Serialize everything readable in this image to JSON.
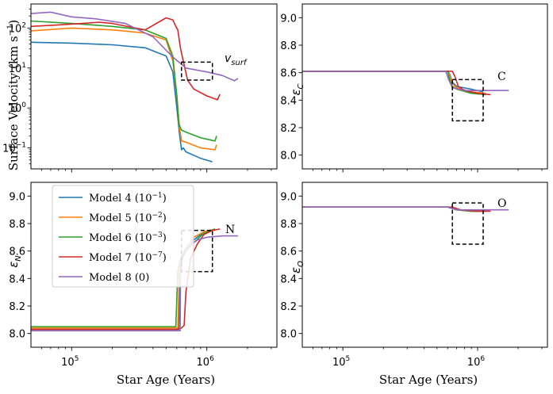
{
  "figure": {
    "xlabel": "Star Age (Years)",
    "xticks": [
      "10",
      "10"
    ],
    "xtick_exponents": [
      "5",
      "6"
    ],
    "x_range": [
      50000,
      3300000
    ]
  },
  "legend": [
    {
      "label": "Model 4 (10",
      "exp": "−1",
      "close": ")",
      "color": "#1f77b4"
    },
    {
      "label": "Model 5 (10",
      "exp": "−2",
      "close": ")",
      "color": "#ff7f0e"
    },
    {
      "label": "Model 6 (10",
      "exp": "−3",
      "close": ")",
      "color": "#2ca02c"
    },
    {
      "label": "Model 7 (10",
      "exp": "−7",
      "close": ")",
      "color": "#d62728"
    },
    {
      "label": "Model 8 (0)",
      "exp": "",
      "close": "",
      "color": "#9467bd"
    }
  ],
  "panels": {
    "velocity": {
      "ylabel_main": "Surface Velocity (km s",
      "ylabel_exp": "−1",
      "ylabel_close": ")",
      "yticks": [
        {
          "base": "10",
          "exp": "2",
          "value": 100
        },
        {
          "base": "10",
          "exp": "1",
          "value": 10
        },
        {
          "base": "10",
          "exp": "0",
          "value": 1
        },
        {
          "base": "10",
          "exp": "−1",
          "value": 0.1
        }
      ],
      "annotation": "v",
      "annotation_sub": "surf"
    },
    "carbon": {
      "ylabel": "ε",
      "ylabel_sub": "C",
      "yticks": [
        "9.0",
        "8.8",
        "8.6",
        "8.4",
        "8.2",
        "8.0"
      ],
      "annotation": "C"
    },
    "nitrogen": {
      "ylabel": "ε",
      "ylabel_sub": "N",
      "yticks": [
        "9.0",
        "8.8",
        "8.6",
        "8.4",
        "8.2",
        "8.0"
      ],
      "annotation": "N"
    },
    "oxygen": {
      "ylabel": "ε",
      "ylabel_sub": "O",
      "yticks": [
        "9.0",
        "8.8",
        "8.6",
        "8.4",
        "8.2",
        "8.0"
      ],
      "annotation": "O"
    }
  },
  "chart_data": [
    {
      "type": "line",
      "title": "",
      "xlabel": "",
      "ylabel": "Surface Velocity (km s−1)",
      "xscale": "log",
      "yscale": "log",
      "xlim": [
        50000,
        3300000
      ],
      "ylim": [
        0.03,
        400
      ],
      "highlight_box": {
        "x": [
          650000,
          1100000
        ],
        "y": [
          5,
          14
        ]
      },
      "series": [
        {
          "name": "Model 4 (10−1)",
          "x": [
            50000,
            100000,
            200000,
            350000,
            500000,
            560000,
            600000,
            630000,
            650000,
            670000,
            700000,
            900000,
            1100000
          ],
          "y": [
            44,
            42,
            38,
            32,
            20,
            8,
            1,
            0.2,
            0.09,
            0.1,
            0.08,
            0.055,
            0.045
          ]
        },
        {
          "name": "Model 5 (10−2)",
          "x": [
            50000,
            100000,
            200000,
            350000,
            500000,
            560000,
            600000,
            630000,
            650000,
            700000,
            900000,
            1150000,
            1180000
          ],
          "y": [
            85,
            100,
            90,
            75,
            50,
            15,
            2,
            0.3,
            0.15,
            0.14,
            0.1,
            0.09,
            0.12
          ]
        },
        {
          "name": "Model 6 (10−3)",
          "x": [
            50000,
            100000,
            200000,
            350000,
            500000,
            560000,
            600000,
            620000,
            650000,
            700000,
            900000,
            1150000,
            1180000
          ],
          "y": [
            150,
            130,
            110,
            90,
            55,
            20,
            2,
            0.4,
            0.28,
            0.25,
            0.18,
            0.15,
            0.2
          ]
        },
        {
          "name": "Model 7 (10−7)",
          "x": [
            50000,
            80000,
            120000,
            160000,
            200000,
            350000,
            500000,
            560000,
            590000,
            610000,
            640000,
            680000,
            720000,
            800000,
            1000000,
            1200000,
            1250000
          ],
          "y": [
            110,
            120,
            130,
            140,
            130,
            90,
            180,
            160,
            110,
            90,
            30,
            12,
            5,
            3,
            2,
            1.6,
            2.2
          ]
        },
        {
          "name": "Model 8 (0)",
          "x": [
            50000,
            70000,
            100000,
            150000,
            250000,
            400000,
            550000,
            700000,
            1000000,
            1300000,
            1600000,
            1700000
          ],
          "y": [
            230,
            250,
            190,
            170,
            130,
            60,
            20,
            10,
            8,
            6.5,
            4.8,
            5.5
          ]
        }
      ]
    },
    {
      "type": "line",
      "title": "",
      "xlabel": "",
      "ylabel": "εC",
      "xscale": "log",
      "xlim": [
        50000,
        3300000
      ],
      "ylim": [
        7.9,
        9.1
      ],
      "highlight_box": {
        "x": [
          650000,
          1100000
        ],
        "y": [
          8.25,
          8.55
        ]
      },
      "series": [
        {
          "name": "Model 4 (10−1)",
          "x": [
            50000,
            600000,
            620000,
            650000,
            700000,
            900000,
            1100000
          ],
          "y": [
            8.61,
            8.61,
            8.59,
            8.53,
            8.5,
            8.48,
            8.46
          ]
        },
        {
          "name": "Model 5 (10−2)",
          "x": [
            50000,
            600000,
            620000,
            650000,
            700000,
            900000,
            1150000
          ],
          "y": [
            8.61,
            8.61,
            8.58,
            8.52,
            8.49,
            8.46,
            8.45
          ]
        },
        {
          "name": "Model 6 (10−3)",
          "x": [
            50000,
            600000,
            620000,
            650000,
            700000,
            900000,
            1150000
          ],
          "y": [
            8.61,
            8.61,
            8.55,
            8.5,
            8.48,
            8.45,
            8.44
          ]
        },
        {
          "name": "Model 7 (10−7)",
          "x": [
            50000,
            650000,
            680000,
            720000,
            800000,
            1000000,
            1250000
          ],
          "y": [
            8.61,
            8.61,
            8.57,
            8.5,
            8.47,
            8.45,
            8.44
          ]
        },
        {
          "name": "Model 8 (0)",
          "x": [
            50000,
            580000,
            610000,
            650000,
            800000,
            1000000,
            1300000,
            1700000
          ],
          "y": [
            8.61,
            8.61,
            8.55,
            8.49,
            8.47,
            8.47,
            8.47,
            8.47
          ]
        }
      ]
    },
    {
      "type": "line",
      "title": "",
      "xlabel": "Star Age (Years)",
      "ylabel": "εN",
      "xscale": "log",
      "xlim": [
        50000,
        3300000
      ],
      "ylim": [
        7.9,
        9.1
      ],
      "highlight_box": {
        "x": [
          650000,
          1100000
        ],
        "y": [
          8.45,
          8.75
        ]
      },
      "series": [
        {
          "name": "Model 4 (10−1)",
          "x": [
            50000,
            620000,
            635000,
            660000,
            700000,
            800000,
            900000,
            1100000
          ],
          "y": [
            8.03,
            8.03,
            8.4,
            8.55,
            8.6,
            8.68,
            8.72,
            8.75
          ]
        },
        {
          "name": "Model 5 (10−2)",
          "x": [
            50000,
            610000,
            625000,
            650000,
            700000,
            800000,
            950000,
            1150000
          ],
          "y": [
            8.04,
            8.04,
            8.44,
            8.55,
            8.62,
            8.7,
            8.74,
            8.76
          ]
        },
        {
          "name": "Model 6 (10−3)",
          "x": [
            50000,
            590000,
            610000,
            640000,
            700000,
            800000,
            950000,
            1150000
          ],
          "y": [
            8.05,
            8.05,
            8.45,
            8.55,
            8.6,
            8.66,
            8.73,
            8.76
          ]
        },
        {
          "name": "Model 7 (10−7)",
          "x": [
            50000,
            600000,
            650000,
            680000,
            700000,
            760000,
            850000,
            950000,
            1100000,
            1250000
          ],
          "y": [
            8.03,
            8.03,
            8.04,
            8.06,
            8.3,
            8.55,
            8.65,
            8.72,
            8.75,
            8.76
          ]
        },
        {
          "name": "Model 8 (0)",
          "x": [
            50000,
            635000,
            640000,
            700000,
            850000,
            1000000,
            1300000,
            1700000
          ],
          "y": [
            8.02,
            8.02,
            8.55,
            8.62,
            8.68,
            8.7,
            8.71,
            8.71
          ]
        }
      ]
    },
    {
      "type": "line",
      "title": "",
      "xlabel": "Star Age (Years)",
      "ylabel": "εO",
      "xscale": "log",
      "xlim": [
        50000,
        3300000
      ],
      "ylim": [
        7.9,
        9.1
      ],
      "highlight_box": {
        "x": [
          650000,
          1100000
        ],
        "y": [
          8.65,
          8.95
        ]
      },
      "series": [
        {
          "name": "Model 4 (10−1)",
          "x": [
            50000,
            600000,
            700000,
            900000,
            1100000
          ],
          "y": [
            8.92,
            8.92,
            8.9,
            8.89,
            8.89
          ]
        },
        {
          "name": "Model 5 (10−2)",
          "x": [
            50000,
            600000,
            700000,
            900000,
            1150000
          ],
          "y": [
            8.92,
            8.92,
            8.9,
            8.89,
            8.89
          ]
        },
        {
          "name": "Model 6 (10−3)",
          "x": [
            50000,
            600000,
            700000,
            900000,
            1150000
          ],
          "y": [
            8.92,
            8.92,
            8.9,
            8.89,
            8.89
          ]
        },
        {
          "name": "Model 7 (10−7)",
          "x": [
            50000,
            650000,
            750000,
            1000000,
            1250000
          ],
          "y": [
            8.92,
            8.92,
            8.9,
            8.89,
            8.89
          ]
        },
        {
          "name": "Model 8 (0)",
          "x": [
            50000,
            600000,
            700000,
            1000000,
            1700000
          ],
          "y": [
            8.92,
            8.92,
            8.9,
            8.9,
            8.9
          ]
        }
      ]
    }
  ]
}
